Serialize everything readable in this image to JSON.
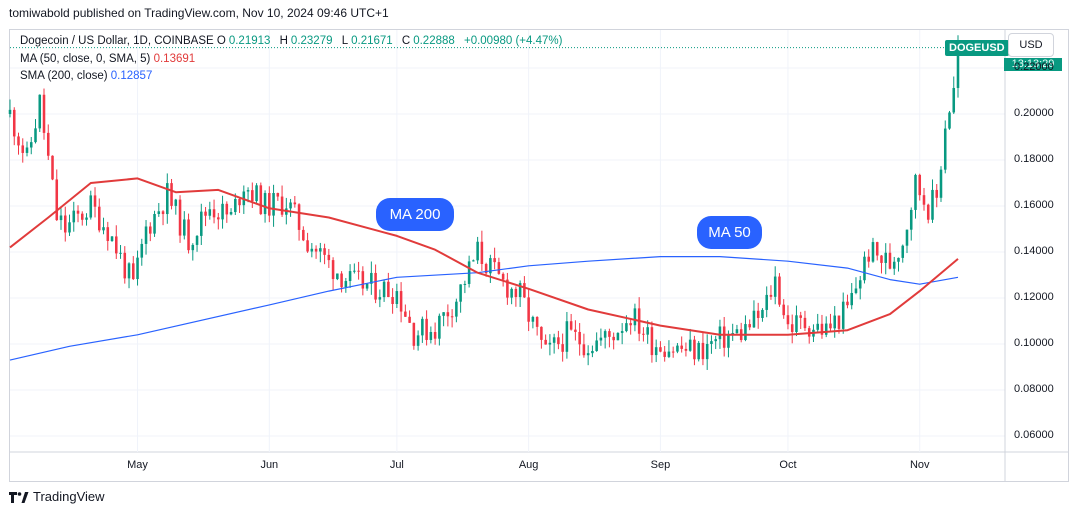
{
  "publisher": "tomiwabold published on TradingView.com, Nov 10, 2024 09:46 UTC+1",
  "legend": {
    "title": "Dogecoin / US Dollar, 1D, COINBASE",
    "open_label": "O",
    "open": "0.21913",
    "high_label": "H",
    "high": "0.23279",
    "low_label": "L",
    "low": "0.21671",
    "close_label": "C",
    "close": "0.22888",
    "change": "+0.00980 (+4.47%)",
    "ma50_title": "MA (50, close, 0, SMA, 5)",
    "ma50_value": "0.13691",
    "sma200_title": "SMA (200, close)",
    "sma200_value": "0.12857"
  },
  "labels": {
    "ma200": "MA 200",
    "ma50": "MA 50"
  },
  "ticker": "DOGEUSD",
  "currency": "USD",
  "countdown": "13:13:29",
  "brand": "TradingView",
  "icons": {
    "logo": "tradingview-logo-icon"
  },
  "colors": {
    "up": "#089981",
    "down": "#f23645",
    "ma50": "#e13b3b",
    "sma200": "#2962ff"
  },
  "chart_data": {
    "type": "candlestick",
    "title": "Dogecoin / US Dollar, 1D, COINBASE",
    "x_ticks": [
      "May",
      "Jun",
      "Jul",
      "Aug",
      "Sep",
      "Oct",
      "Nov"
    ],
    "y_ticks": [
      "0.06000",
      "0.08000",
      "0.10000",
      "0.12000",
      "0.14000",
      "0.16000",
      "0.18000",
      "0.20000",
      "0.22000"
    ],
    "ylim": [
      0.05,
      0.235
    ],
    "date_range": [
      "2024-04-01",
      "2024-11-10"
    ],
    "x_tick_dates": [
      "2024-05-01",
      "2024-06-01",
      "2024-07-01",
      "2024-08-01",
      "2024-09-01",
      "2024-10-01",
      "2024-11-01"
    ],
    "series": [
      {
        "name": "MA (50, close, 0, SMA, 5)",
        "points": [
          [
            "2024-04-01",
            0.142
          ],
          [
            "2024-04-10",
            0.155
          ],
          [
            "2024-04-20",
            0.17
          ],
          [
            "2024-05-01",
            0.172
          ],
          [
            "2024-05-10",
            0.166
          ],
          [
            "2024-05-20",
            0.167
          ],
          [
            "2024-06-01",
            0.159
          ],
          [
            "2024-06-15",
            0.155
          ],
          [
            "2024-07-01",
            0.147
          ],
          [
            "2024-07-10",
            0.141
          ],
          [
            "2024-07-20",
            0.131
          ],
          [
            "2024-08-01",
            0.124
          ],
          [
            "2024-08-15",
            0.115
          ],
          [
            "2024-09-01",
            0.108
          ],
          [
            "2024-09-15",
            0.104
          ],
          [
            "2024-10-01",
            0.104
          ],
          [
            "2024-10-15",
            0.106
          ],
          [
            "2024-10-25",
            0.113
          ],
          [
            "2024-11-01",
            0.123
          ],
          [
            "2024-11-10",
            0.137
          ]
        ]
      },
      {
        "name": "SMA (200, close)",
        "points": [
          [
            "2024-04-01",
            0.093
          ],
          [
            "2024-04-15",
            0.099
          ],
          [
            "2024-05-01",
            0.104
          ],
          [
            "2024-06-01",
            0.117
          ],
          [
            "2024-06-15",
            0.123
          ],
          [
            "2024-07-01",
            0.129
          ],
          [
            "2024-07-20",
            0.131
          ],
          [
            "2024-08-01",
            0.134
          ],
          [
            "2024-08-15",
            0.136
          ],
          [
            "2024-09-01",
            0.138
          ],
          [
            "2024-09-15",
            0.138
          ],
          [
            "2024-10-01",
            0.136
          ],
          [
            "2024-10-15",
            0.133
          ],
          [
            "2024-10-25",
            0.128
          ],
          [
            "2024-11-01",
            0.126
          ],
          [
            "2024-11-10",
            0.129
          ]
        ]
      },
      {
        "name": "DOGEUSD close",
        "points": [
          [
            "2024-04-01",
            0.2
          ],
          [
            "2024-04-05",
            0.18
          ],
          [
            "2024-04-08",
            0.205
          ],
          [
            "2024-04-12",
            0.155
          ],
          [
            "2024-04-14",
            0.15
          ],
          [
            "2024-04-20",
            0.16
          ],
          [
            "2024-04-24",
            0.15
          ],
          [
            "2024-04-30",
            0.125
          ],
          [
            "2024-05-03",
            0.15
          ],
          [
            "2024-05-08",
            0.165
          ],
          [
            "2024-05-13",
            0.145
          ],
          [
            "2024-05-18",
            0.16
          ],
          [
            "2024-05-23",
            0.155
          ],
          [
            "2024-05-26",
            0.17
          ],
          [
            "2024-05-31",
            0.16
          ],
          [
            "2024-06-05",
            0.162
          ],
          [
            "2024-06-10",
            0.145
          ],
          [
            "2024-06-15",
            0.135
          ],
          [
            "2024-06-20",
            0.127
          ],
          [
            "2024-06-25",
            0.125
          ],
          [
            "2024-07-01",
            0.123
          ],
          [
            "2024-07-05",
            0.105
          ],
          [
            "2024-07-10",
            0.107
          ],
          [
            "2024-07-15",
            0.12
          ],
          [
            "2024-07-20",
            0.14
          ],
          [
            "2024-07-25",
            0.128
          ],
          [
            "2024-07-30",
            0.121
          ],
          [
            "2024-08-05",
            0.095
          ],
          [
            "2024-08-10",
            0.104
          ],
          [
            "2024-08-15",
            0.1
          ],
          [
            "2024-08-20",
            0.103
          ],
          [
            "2024-08-25",
            0.113
          ],
          [
            "2024-08-30",
            0.101
          ],
          [
            "2024-09-05",
            0.098
          ],
          [
            "2024-09-10",
            0.097
          ],
          [
            "2024-09-15",
            0.102
          ],
          [
            "2024-09-20",
            0.105
          ],
          [
            "2024-09-25",
            0.113
          ],
          [
            "2024-09-28",
            0.128
          ],
          [
            "2024-10-01",
            0.108
          ],
          [
            "2024-10-05",
            0.109
          ],
          [
            "2024-10-10",
            0.106
          ],
          [
            "2024-10-15",
            0.115
          ],
          [
            "2024-10-20",
            0.14
          ],
          [
            "2024-10-25",
            0.135
          ],
          [
            "2024-10-28",
            0.145
          ],
          [
            "2024-10-31",
            0.17
          ],
          [
            "2024-11-03",
            0.16
          ],
          [
            "2024-11-05",
            0.163
          ],
          [
            "2024-11-07",
            0.196
          ],
          [
            "2024-11-09",
            0.21
          ],
          [
            "2024-11-10",
            0.229
          ]
        ]
      }
    ]
  }
}
